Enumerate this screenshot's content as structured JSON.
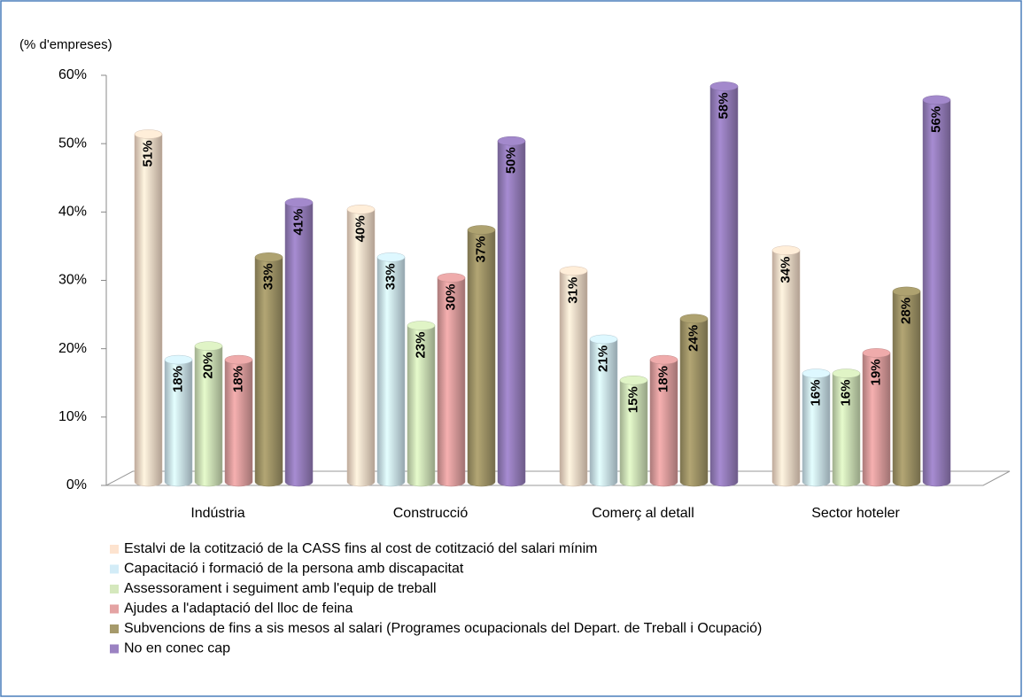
{
  "chart_data": {
    "type": "bar3d",
    "y_axis_label": "(% d'empreses)",
    "categories": [
      "Indústria",
      "Construcció",
      "Comerç al detall",
      "Sector hoteler"
    ],
    "ylim": [
      0,
      60
    ],
    "yticks": [
      {
        "value": 0,
        "label": "0%"
      },
      {
        "value": 10,
        "label": "10%"
      },
      {
        "value": 20,
        "label": "20%"
      },
      {
        "value": 30,
        "label": "30%"
      },
      {
        "value": 40,
        "label": "40%"
      },
      {
        "value": 50,
        "label": "50%"
      },
      {
        "value": 60,
        "label": "60%"
      }
    ],
    "series": [
      {
        "name": "Estalvi de la cotització de la CASS fins al cost de cotització del salari mínim",
        "color": "#fde3cf",
        "values": [
          51,
          40,
          31,
          34
        ],
        "value_labels": [
          "51%",
          "40%",
          "31%",
          "34%"
        ]
      },
      {
        "name": "Capacitació i formació de la persona amb discapacitat",
        "color": "#d3ecf7",
        "values": [
          18,
          33,
          21,
          16
        ],
        "value_labels": [
          "18%",
          "33%",
          "21%",
          "16%"
        ]
      },
      {
        "name": "Assessorament i seguiment amb l'equip de treball",
        "color": "#d5e8bd",
        "values": [
          20,
          23,
          15,
          16
        ],
        "value_labels": [
          "20%",
          "23%",
          "15%",
          "16%"
        ]
      },
      {
        "name": "Ajudes a l'adaptació del lloc de feina",
        "color": "#e4a3a3",
        "values": [
          18,
          30,
          18,
          19
        ],
        "value_labels": [
          "18%",
          "30%",
          "18%",
          "19%"
        ]
      },
      {
        "name": "Subvencions de fins a sis mesos al salari (Programes ocupacionals del Depart. de Treball i Ocupació)",
        "color": "#a69a6b",
        "values": [
          33,
          37,
          24,
          28
        ],
        "value_labels": [
          "33%",
          "37%",
          "24%",
          "28%"
        ]
      },
      {
        "name": "No en conec cap",
        "color": "#9b82c2",
        "values": [
          41,
          50,
          58,
          56
        ],
        "value_labels": [
          "41%",
          "50%",
          "58%",
          "56%"
        ]
      }
    ]
  }
}
